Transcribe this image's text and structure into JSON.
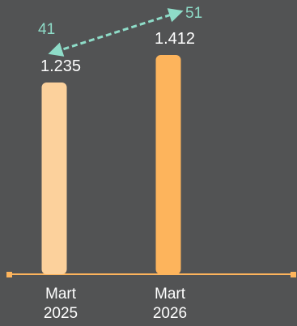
{
  "colors": {
    "background": "#525354",
    "bar_2025": "#FCD19C",
    "bar_2026": "#FDB45C",
    "axis": "#FDB45C",
    "trend": "#8EDCC8",
    "text": "#FFFFFF"
  },
  "chart_data": {
    "type": "bar",
    "categories": [
      {
        "line1": "Mart",
        "line2": "2025"
      },
      {
        "line1": "Mart",
        "line2": "2026"
      }
    ],
    "values": [
      1235,
      1412
    ],
    "value_labels": [
      "1.235",
      "1.412"
    ],
    "ylim": [
      0,
      1500
    ],
    "trend": {
      "values": [
        41,
        51
      ],
      "labels": [
        "41",
        "51"
      ]
    }
  }
}
